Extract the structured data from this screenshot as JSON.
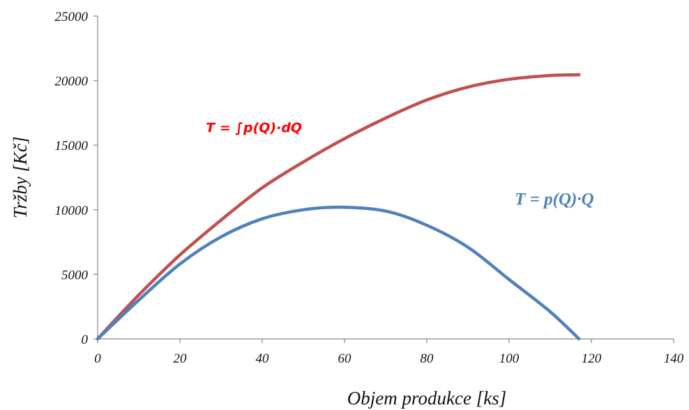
{
  "chart_data": {
    "type": "line",
    "xlabel": "Objem produkce [ks]",
    "ylabel": "Tržby [Kč]",
    "xlim": [
      0,
      140
    ],
    "ylim": [
      0,
      25000
    ],
    "x_ticks": [
      "0",
      "20",
      "40",
      "60",
      "80",
      "100",
      "120",
      "140"
    ],
    "y_ticks": [
      "0",
      "5000",
      "10000",
      "15000",
      "20000",
      "25000"
    ],
    "grid": false,
    "legend": "none",
    "series": [
      {
        "name": "",
        "color": "#c0504d",
        "x": [
          0,
          10,
          20,
          30,
          40,
          50,
          60,
          70,
          80,
          90,
          100,
          110,
          117
        ],
        "y": [
          0,
          3400,
          6500,
          9200,
          11700,
          13700,
          15500,
          17100,
          18500,
          19500,
          20100,
          20400,
          20450
        ]
      },
      {
        "name": "",
        "color": "#4f81bd",
        "x": [
          0,
          10,
          20,
          30,
          40,
          50,
          59,
          70,
          80,
          90,
          100,
          110,
          117
        ],
        "y": [
          0,
          3000,
          5800,
          7900,
          9300,
          10000,
          10200,
          9900,
          8800,
          7100,
          4600,
          2100,
          0
        ]
      }
    ],
    "annotations": [
      {
        "text": "T = ∫p(Q)·dQ",
        "color": "#ff0000",
        "x": 38,
        "y": 16000
      },
      {
        "text": "T = p(Q)·Q",
        "color": "#4f81bd",
        "x": 111,
        "y": 10400
      }
    ]
  }
}
